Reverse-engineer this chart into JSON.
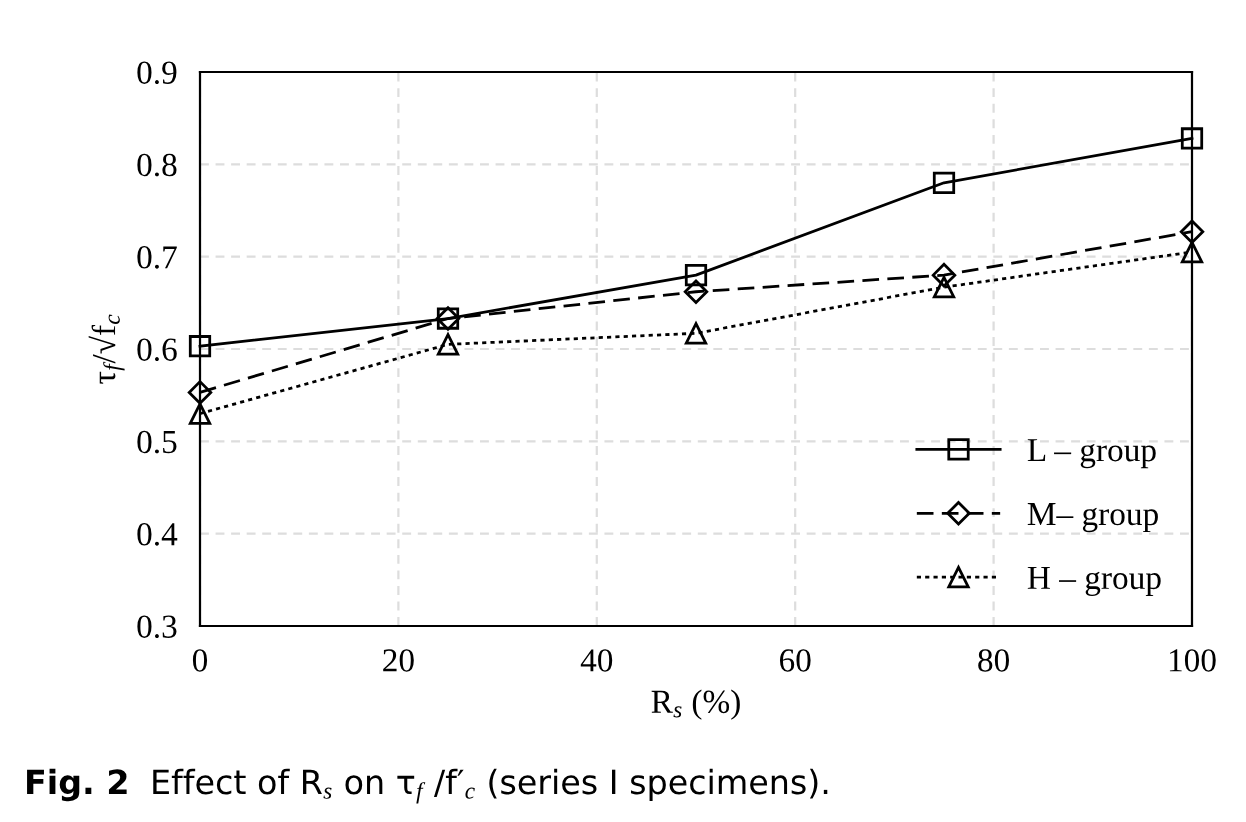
{
  "chart_data": {
    "type": "line",
    "xlabel": "R$_{s}$ (%)",
    "ylabel": "τ$_{f}$/√f$_{c}$",
    "x": [
      0,
      25,
      50,
      75,
      100
    ],
    "series": [
      {
        "name": "L – group",
        "color": "#000000",
        "marker": "square",
        "line_style": "solid",
        "values": [
          0.603,
          0.633,
          0.68,
          0.78,
          0.828
        ]
      },
      {
        "name": "M– group",
        "color": "#000000",
        "marker": "diamond",
        "line_style": "dashed",
        "values": [
          0.553,
          0.633,
          0.662,
          0.68,
          0.727
        ]
      },
      {
        "name": "H – group",
        "color": "#000000",
        "marker": "triangle",
        "line_style": "dotted",
        "values": [
          0.53,
          0.605,
          0.617,
          0.667,
          0.705
        ]
      }
    ],
    "xlim": [
      0,
      100
    ],
    "xticks": [
      0,
      20,
      40,
      60,
      80,
      100
    ],
    "ylim": [
      0.3,
      0.9
    ],
    "yticks": [
      0.3,
      0.4,
      0.5,
      0.6,
      0.7,
      0.8,
      0.9
    ],
    "grid": true,
    "legend": "bottom right",
    "annotations": [
      "Fig. 2",
      "Effect of R$_{s}$ on τ$_{f}$ /f′$_{c}$ (series I specimens)."
    ]
  }
}
